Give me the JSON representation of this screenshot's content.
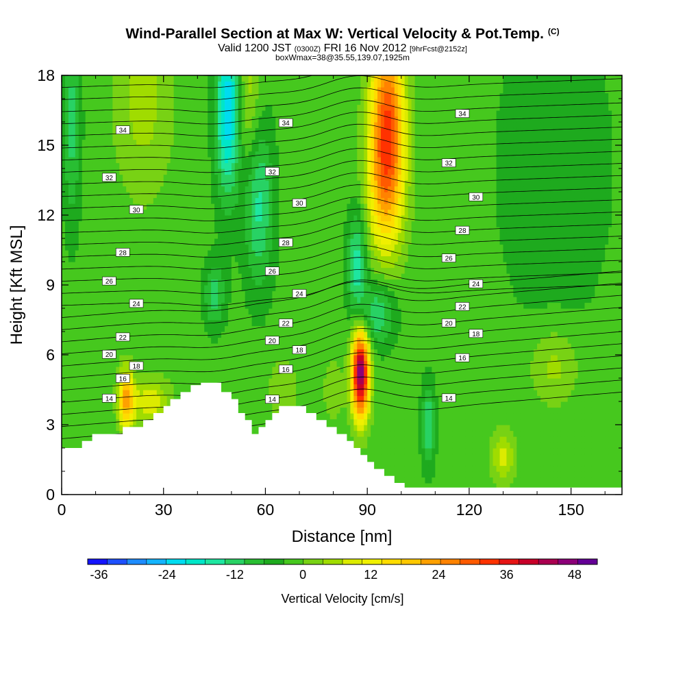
{
  "chart_data": {
    "type": "heatmap",
    "title": "Wind-Parallel Section at Max W: Vertical Velocity & Pot.Temp.",
    "title_mark": "(C)",
    "subtitle_main_a": "Valid 1200 JST",
    "subtitle_small_a": "(0300Z)",
    "subtitle_main_b": "FRI 16 Nov 2012",
    "subtitle_small_b": "[9hrFcst@2152z]",
    "subtitle2": "boxWmax=38@35.55,139.07,1925m",
    "xlabel": "Distance [nm]",
    "ylabel": "Height [Kft MSL]",
    "xlim": [
      0,
      165
    ],
    "ylim": [
      0,
      18
    ],
    "xticks": [
      "0",
      "30",
      "60",
      "90",
      "120",
      "150"
    ],
    "yticks": [
      "0",
      "3",
      "6",
      "9",
      "12",
      "15",
      "18"
    ],
    "colorbar": {
      "label": "Vertical Velocity [cm/s]",
      "ticks": [
        "-36",
        "-24",
        "-12",
        "0",
        "12",
        "24",
        "36",
        "48"
      ],
      "colors": [
        "#1414ff",
        "#1e50ff",
        "#1e8cff",
        "#14b4ff",
        "#00dcf0",
        "#00e6c8",
        "#1ee6a0",
        "#28d264",
        "#28be32",
        "#1eaa1e",
        "#46c81e",
        "#78d214",
        "#a0dc00",
        "#dceb00",
        "#f0f000",
        "#ffdc00",
        "#ffc800",
        "#ffa000",
        "#ff8200",
        "#ff5a00",
        "#ff3200",
        "#e61414",
        "#c80028",
        "#aa0050",
        "#8c0078",
        "#640096"
      ],
      "vmin": -38,
      "vmax": 52
    },
    "terrain": [
      [
        0,
        2.0
      ],
      [
        3,
        2.0
      ],
      [
        6,
        2.3
      ],
      [
        9,
        2.6
      ],
      [
        12,
        2.6
      ],
      [
        15,
        2.6
      ],
      [
        18,
        2.9
      ],
      [
        21,
        2.9
      ],
      [
        24,
        3.2
      ],
      [
        27,
        3.5
      ],
      [
        30,
        3.8
      ],
      [
        32,
        4.1
      ],
      [
        35,
        4.4
      ],
      [
        38,
        4.7
      ],
      [
        41,
        4.8
      ],
      [
        44,
        4.8
      ],
      [
        47,
        4.4
      ],
      [
        50,
        4.1
      ],
      [
        52,
        3.5
      ],
      [
        54,
        3.2
      ],
      [
        56,
        2.6
      ],
      [
        58,
        2.9
      ],
      [
        60,
        3.2
      ],
      [
        62,
        3.5
      ],
      [
        64,
        3.8
      ],
      [
        67,
        3.8
      ],
      [
        70,
        3.8
      ],
      [
        72,
        3.5
      ],
      [
        75,
        3.2
      ],
      [
        78,
        2.9
      ],
      [
        81,
        2.6
      ],
      [
        84,
        2.3
      ],
      [
        86,
        2.0
      ],
      [
        88,
        1.7
      ],
      [
        90,
        1.4
      ],
      [
        92,
        1.1
      ],
      [
        95,
        0.8
      ],
      [
        98,
        0.5
      ],
      [
        101,
        0.3
      ],
      [
        165,
        0.3
      ]
    ],
    "isentropes": [
      {
        "label": "14",
        "y0": 4.1,
        "y1": 3.9
      },
      {
        "label": "16",
        "y0": 4.8,
        "y1": 6.0
      },
      {
        "label": "18",
        "y0": 5.2,
        "y1": 7.2
      },
      {
        "label": "20",
        "y0": 5.8,
        "y1": 7.8
      },
      {
        "label": "22",
        "y0": 6.5,
        "y1": 8.4
      },
      {
        "label": "24",
        "y0": 8.0,
        "y1": 9.1
      },
      {
        "label": "26",
        "y0": 9.0,
        "y1": 10.4
      },
      {
        "label": "28",
        "y0": 10.2,
        "y1": 11.5
      },
      {
        "label": "30",
        "y0": 12.1,
        "y1": 12.7
      },
      {
        "label": "32",
        "y0": 13.5,
        "y1": 14.3
      },
      {
        "label": "34",
        "y0": 15.5,
        "y1": 16.4
      }
    ],
    "velocity_features": [
      {
        "x": 88,
        "y": 5.0,
        "value": 48,
        "note": "max updraft"
      },
      {
        "x": 96,
        "y": 16.5,
        "value": 30
      },
      {
        "x": 19,
        "y": 4.2,
        "value": 28
      },
      {
        "x": 50,
        "y": 16.5,
        "value": -22
      },
      {
        "x": 88,
        "y": 10.0,
        "value": -14
      },
      {
        "x": 45,
        "y": 8.5,
        "value": -12
      },
      {
        "x": 108,
        "y": 3.0,
        "value": -12
      },
      {
        "x": 130,
        "y": 1.5,
        "value": 10
      }
    ]
  }
}
